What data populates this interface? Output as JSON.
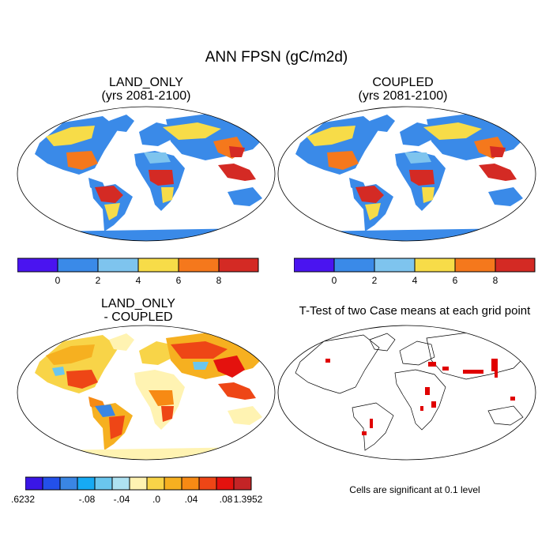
{
  "title": "ANN FPSN (gC/m2d)",
  "panels": {
    "land_only": {
      "title_line1": "LAND_ONLY",
      "title_line2": "(yrs 2081-2100)"
    },
    "coupled": {
      "title_line1": "COUPLED",
      "title_line2": "(yrs 2081-2100)"
    },
    "difference": {
      "title_line1": "LAND_ONLY",
      "title_line2": "- COUPLED"
    },
    "ttest": {
      "title": "T-Test of two Case means at each grid point",
      "note": "Cells are significant at 0.1 level"
    }
  },
  "colorbar_top": {
    "colors": [
      "#4a14f0",
      "#3a8ae8",
      "#7ec4ee",
      "#f7dc48",
      "#f5781c",
      "#d42a24"
    ],
    "tick_labels": [
      "0",
      "2",
      "4",
      "6",
      "8"
    ]
  },
  "colorbar_diff": {
    "colors": [
      "#3a16e6",
      "#2350ea",
      "#3a86e4",
      "#16aaf4",
      "#6ac6ee",
      "#aee2f2",
      "#fff3b2",
      "#f8d448",
      "#f6b020",
      "#f78a14",
      "#ee4616",
      "#e4120e",
      "#c42426"
    ],
    "tick_labels": [
      ".6232",
      "-.08",
      "-.04",
      ".0",
      ".04",
      ".08",
      "1.3952"
    ]
  },
  "ttest_color": "#e00000"
}
